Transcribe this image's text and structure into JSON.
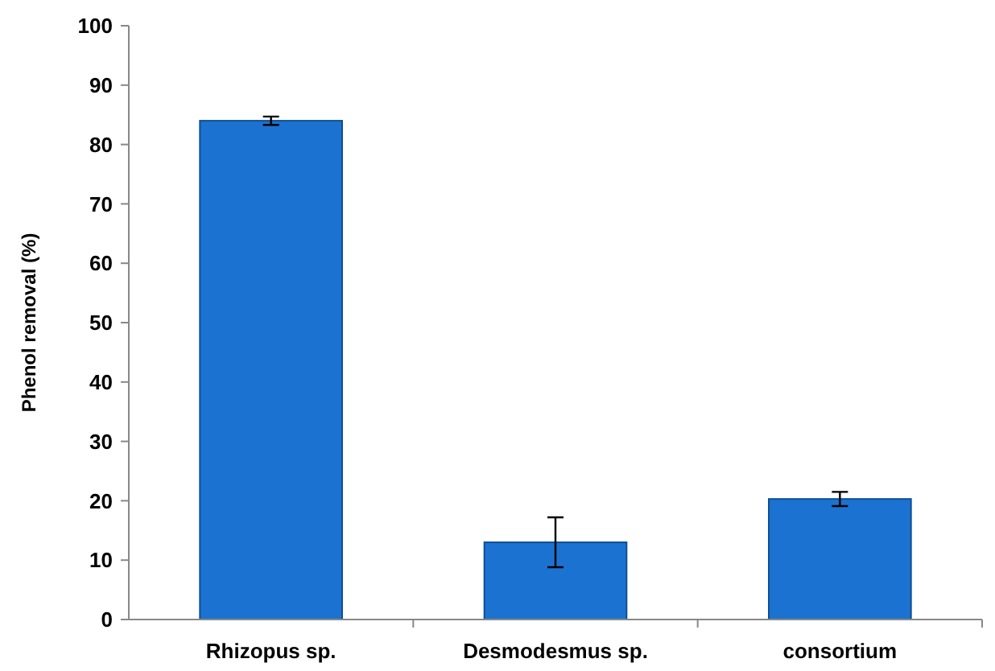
{
  "chart_data": {
    "type": "bar",
    "ylabel": "Phenol removal (%)",
    "categories": [
      "Rhizopus sp.",
      "Desmodesmus sp.",
      "consortium"
    ],
    "values": [
      84,
      13,
      20.3
    ],
    "errors": [
      0.7,
      4.2,
      1.2
    ],
    "color": "#1c72d0",
    "ylim": [
      0,
      100
    ],
    "yticks": [
      0,
      10,
      20,
      30,
      40,
      50,
      60,
      70,
      80,
      90,
      100
    ],
    "grid": false
  }
}
